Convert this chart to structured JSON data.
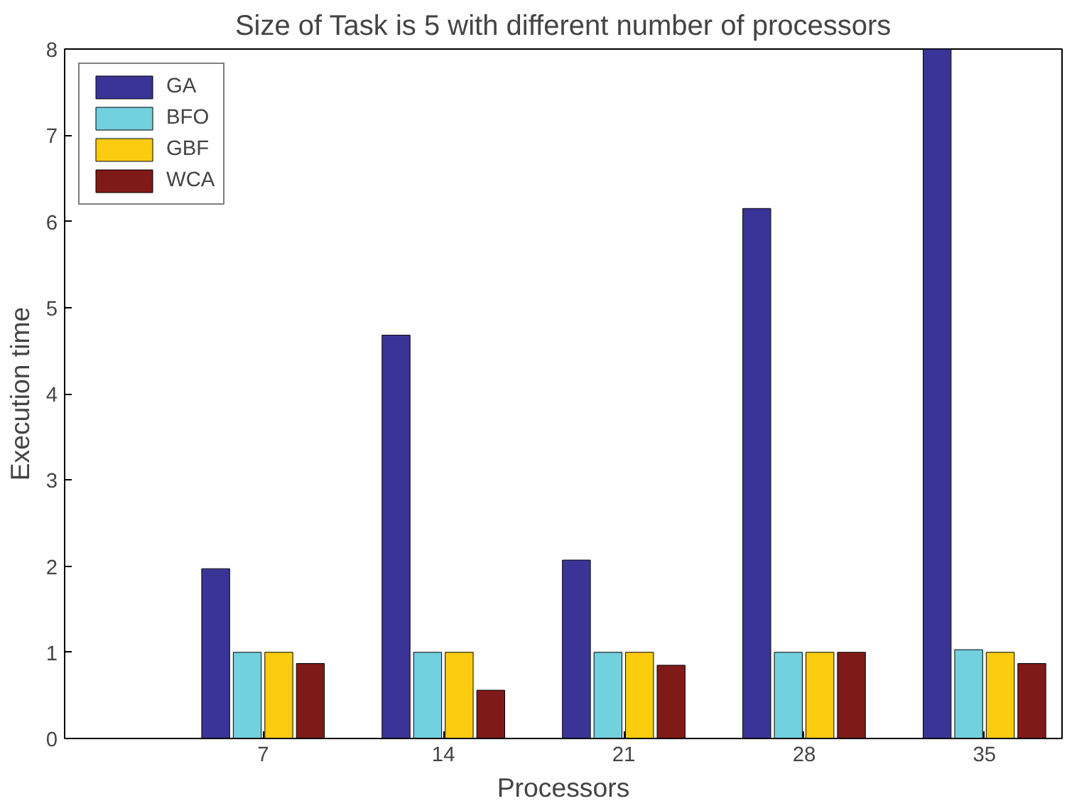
{
  "chart_data": {
    "type": "bar",
    "title": "Size of Task is 5 with different number of processors",
    "xlabel": "Processors",
    "ylabel": "Execution time",
    "categories": [
      "7",
      "14",
      "21",
      "28",
      "35"
    ],
    "series": [
      {
        "name": "GA",
        "color": "#3b3497",
        "values": [
          1.97,
          4.68,
          2.07,
          6.15,
          8.0
        ]
      },
      {
        "name": "BFO",
        "color": "#72d0df",
        "values": [
          1.0,
          1.0,
          1.0,
          1.0,
          1.03
        ]
      },
      {
        "name": "GBF",
        "color": "#fbcc10",
        "values": [
          1.0,
          1.0,
          1.0,
          1.0,
          1.0
        ]
      },
      {
        "name": "WCA",
        "color": "#7f1a18",
        "values": [
          0.87,
          0.56,
          0.85,
          1.0,
          0.87
        ]
      }
    ],
    "ylim": [
      0,
      8
    ],
    "yticks": [
      0,
      1,
      2,
      3,
      4,
      5,
      6,
      7,
      8
    ],
    "legend": "top left",
    "grid": false
  }
}
